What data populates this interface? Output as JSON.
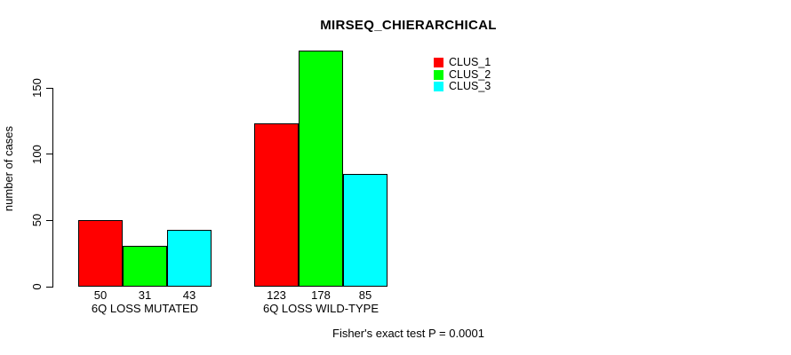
{
  "title": "MIRSEQ_CHIERARCHICAL",
  "ylabel": "number of cases",
  "footer": "Fisher's exact test P = 0.0001",
  "legend": {
    "items": [
      {
        "label": "CLUS_1",
        "color": "#ff0000"
      },
      {
        "label": "CLUS_2",
        "color": "#00ff00"
      },
      {
        "label": "CLUS_3",
        "color": "#00ffff"
      }
    ]
  },
  "chart_data": {
    "type": "bar",
    "title": "MIRSEQ_CHIERARCHICAL",
    "xlabel": "",
    "ylabel": "number of cases",
    "categories": [
      "6Q LOSS MUTATED",
      "6Q LOSS WILD-TYPE"
    ],
    "series": [
      {
        "name": "CLUS_1",
        "color": "#ff0000",
        "values": [
          50,
          123
        ]
      },
      {
        "name": "CLUS_2",
        "color": "#00ff00",
        "values": [
          31,
          178
        ]
      },
      {
        "name": "CLUS_3",
        "color": "#00ffff",
        "values": [
          43,
          85
        ]
      }
    ],
    "bar_value_labels_shown": true,
    "yticks": [
      0,
      50,
      100,
      150
    ],
    "ylim": [
      0,
      150
    ],
    "grid": false,
    "legend_position": "top-right",
    "annotation": "Fisher's exact test P = 0.0001",
    "background": "#ffffff",
    "bar_border_color": "#000000"
  }
}
